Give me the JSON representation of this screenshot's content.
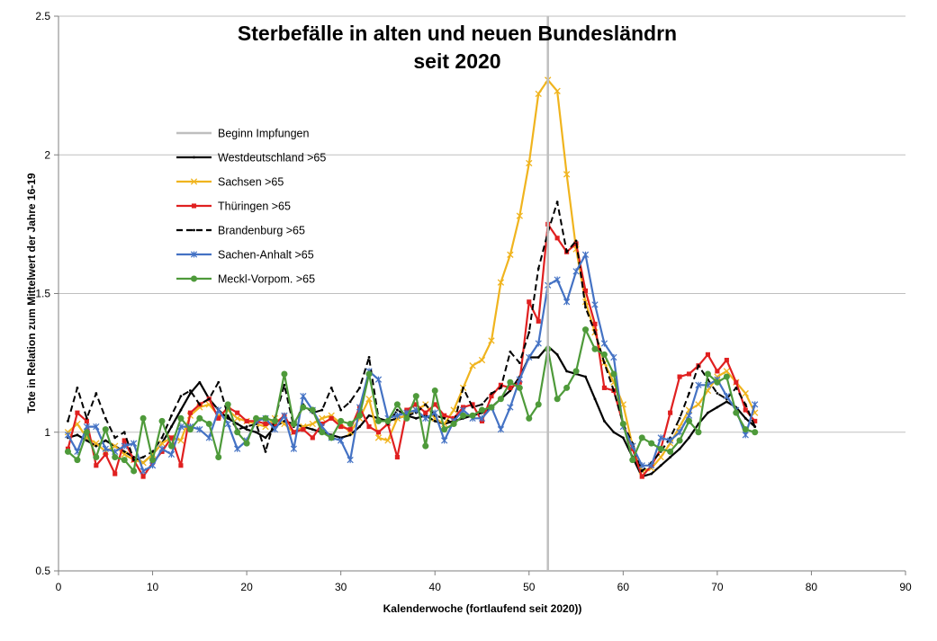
{
  "chart_data": {
    "type": "line",
    "title": [
      "Sterbefälle in alten und neuen Bundesländrn",
      "seit 2020"
    ],
    "xlabel": "Kalenderwoche (fortlaufend seit 2020))",
    "ylabel": "Tote in Relation zum Mittelwert der Jahre 16-19",
    "xlim": [
      0,
      90
    ],
    "ylim": [
      0.5,
      2.5
    ],
    "x_ticks": [
      0,
      10,
      20,
      30,
      40,
      50,
      60,
      70,
      80,
      90
    ],
    "y_ticks": [
      0.5,
      1,
      1.5,
      2,
      2.5
    ],
    "y_tick_labels": [
      "0.5",
      "1",
      "1.5",
      "2",
      "2.5"
    ],
    "grid": "horizontal",
    "legend_position": "upper-left",
    "vertical_marker": {
      "name": "Beginn Impfungen",
      "x": 52,
      "color": "#bfbfbf"
    },
    "series": [
      {
        "name": "Westdeutschland >65",
        "color": "#000000",
        "dash": "solid",
        "marker": "dot",
        "x": [
          1,
          2,
          3,
          4,
          5,
          6,
          7,
          8,
          9,
          10,
          11,
          12,
          13,
          14,
          15,
          16,
          17,
          18,
          19,
          20,
          21,
          22,
          23,
          24,
          25,
          26,
          27,
          28,
          29,
          30,
          31,
          32,
          33,
          34,
          35,
          36,
          37,
          38,
          39,
          40,
          41,
          42,
          43,
          44,
          45,
          46,
          47,
          48,
          49,
          50,
          51,
          52,
          53,
          54,
          55,
          56,
          57,
          58,
          59,
          60,
          61,
          62,
          63,
          64,
          65,
          66,
          67,
          68,
          69,
          70,
          71,
          72,
          73,
          74
        ],
        "y": [
          0.98,
          0.99,
          0.97,
          0.95,
          0.97,
          0.95,
          0.93,
          0.91,
          0.89,
          0.92,
          0.96,
          1.02,
          1.08,
          1.14,
          1.18,
          1.12,
          1.08,
          1.05,
          1.03,
          1.01,
          1.0,
          0.98,
          1.02,
          1.04,
          1.03,
          1.02,
          1.01,
          1.0,
          0.99,
          0.98,
          0.99,
          1.02,
          1.06,
          1.05,
          1.04,
          1.05,
          1.06,
          1.05,
          1.06,
          1.04,
          1.03,
          1.04,
          1.05,
          1.06,
          1.07,
          1.09,
          1.12,
          1.15,
          1.2,
          1.27,
          1.27,
          1.31,
          1.28,
          1.22,
          1.21,
          1.2,
          1.12,
          1.04,
          1.0,
          0.98,
          0.91,
          0.84,
          0.85,
          0.88,
          0.91,
          0.94,
          0.98,
          1.03,
          1.07,
          1.09,
          1.11,
          1.09,
          1.05,
          1.02
        ]
      },
      {
        "name": "Sachsen >65",
        "color": "#f0b41e",
        "dash": "solid",
        "marker": "x",
        "x": [
          1,
          2,
          3,
          4,
          5,
          6,
          7,
          8,
          9,
          10,
          11,
          12,
          13,
          14,
          15,
          16,
          17,
          18,
          19,
          20,
          21,
          22,
          23,
          24,
          25,
          26,
          27,
          28,
          29,
          30,
          31,
          32,
          33,
          34,
          35,
          36,
          37,
          38,
          39,
          40,
          41,
          42,
          43,
          44,
          45,
          46,
          47,
          48,
          49,
          50,
          51,
          52,
          53,
          54,
          55,
          56,
          57,
          58,
          59,
          60,
          61,
          62,
          63,
          64,
          65,
          66,
          67,
          68,
          69,
          70,
          71,
          72,
          73,
          74
        ],
        "y": [
          1.0,
          1.03,
          0.98,
          0.96,
          0.93,
          0.95,
          0.92,
          0.9,
          0.89,
          0.92,
          0.96,
          0.98,
          0.97,
          1.06,
          1.09,
          1.1,
          1.06,
          1.08,
          1.05,
          1.04,
          1.03,
          1.02,
          1.05,
          1.03,
          1.0,
          1.02,
          1.03,
          1.05,
          1.06,
          1.03,
          1.0,
          1.05,
          1.12,
          0.98,
          0.97,
          1.05,
          1.06,
          1.08,
          1.1,
          1.05,
          1.03,
          1.08,
          1.16,
          1.24,
          1.26,
          1.33,
          1.54,
          1.64,
          1.78,
          1.97,
          2.22,
          2.27,
          2.23,
          1.93,
          1.66,
          1.47,
          1.36,
          1.25,
          1.18,
          1.1,
          0.95,
          0.86,
          0.87,
          0.91,
          0.96,
          1.02,
          1.08,
          1.1,
          1.15,
          1.2,
          1.22,
          1.18,
          1.14,
          1.07
        ]
      },
      {
        "name": "Thüringen >65",
        "color": "#e02020",
        "dash": "solid",
        "marker": "square",
        "x": [
          1,
          2,
          3,
          4,
          5,
          6,
          7,
          8,
          9,
          10,
          11,
          12,
          13,
          14,
          15,
          16,
          17,
          18,
          19,
          20,
          21,
          22,
          23,
          24,
          25,
          26,
          27,
          28,
          29,
          30,
          31,
          32,
          33,
          34,
          35,
          36,
          37,
          38,
          39,
          40,
          41,
          42,
          43,
          44,
          45,
          46,
          47,
          48,
          49,
          50,
          51,
          52,
          53,
          54,
          55,
          56,
          57,
          58,
          59,
          60,
          61,
          62,
          63,
          64,
          65,
          66,
          67,
          68,
          69,
          70,
          71,
          72,
          73,
          74
        ],
        "y": [
          0.94,
          1.07,
          1.04,
          0.88,
          0.92,
          0.85,
          0.97,
          0.9,
          0.84,
          0.89,
          0.93,
          0.98,
          0.88,
          1.07,
          1.1,
          1.12,
          1.05,
          1.09,
          1.07,
          1.04,
          1.04,
          1.03,
          1.03,
          1.06,
          1.0,
          1.01,
          0.98,
          1.03,
          1.05,
          1.02,
          1.01,
          1.09,
          1.02,
          1.0,
          1.03,
          0.91,
          1.08,
          1.1,
          1.07,
          1.1,
          1.06,
          1.05,
          1.09,
          1.1,
          1.04,
          1.13,
          1.17,
          1.16,
          1.18,
          1.47,
          1.4,
          1.75,
          1.7,
          1.65,
          1.68,
          1.51,
          1.39,
          1.16,
          1.15,
          1.03,
          0.94,
          0.84,
          0.88,
          0.94,
          1.07,
          1.2,
          1.21,
          1.24,
          1.28,
          1.22,
          1.26,
          1.18,
          1.08,
          1.04
        ]
      },
      {
        "name": "Brandenburg >65",
        "color": "#000000",
        "dash": "dashed",
        "marker": "dot",
        "x": [
          1,
          2,
          3,
          4,
          5,
          6,
          7,
          8,
          9,
          10,
          11,
          12,
          13,
          14,
          15,
          16,
          17,
          18,
          19,
          20,
          21,
          22,
          23,
          24,
          25,
          26,
          27,
          28,
          29,
          30,
          31,
          32,
          33,
          34,
          35,
          36,
          37,
          38,
          39,
          40,
          41,
          42,
          43,
          44,
          45,
          46,
          47,
          48,
          49,
          50,
          51,
          52,
          53,
          54,
          55,
          56,
          57,
          58,
          59,
          60,
          61,
          62,
          63,
          64,
          65,
          66,
          67,
          68,
          69,
          70,
          71,
          72,
          73,
          74
        ],
        "y": [
          1.04,
          1.16,
          1.05,
          1.14,
          1.05,
          0.98,
          1.0,
          0.9,
          0.91,
          0.93,
          0.98,
          1.06,
          1.13,
          1.15,
          1.1,
          1.12,
          1.18,
          1.06,
          1.01,
          1.02,
          1.03,
          0.93,
          1.05,
          1.17,
          1.02,
          1.1,
          1.07,
          1.08,
          1.16,
          1.08,
          1.11,
          1.16,
          1.27,
          1.05,
          1.03,
          1.08,
          1.06,
          1.07,
          1.1,
          1.06,
          1.05,
          1.03,
          1.16,
          1.09,
          1.1,
          1.14,
          1.16,
          1.29,
          1.25,
          1.36,
          1.59,
          1.72,
          1.83,
          1.65,
          1.69,
          1.45,
          1.36,
          1.25,
          1.15,
          1.03,
          0.96,
          0.86,
          0.89,
          0.93,
          0.98,
          1.05,
          1.14,
          1.24,
          1.19,
          1.14,
          1.12,
          1.16,
          1.1,
          1.02
        ]
      },
      {
        "name": "Sachen-Anhalt >65",
        "color": "#4472c4",
        "dash": "solid",
        "marker": "star",
        "x": [
          1,
          2,
          3,
          4,
          5,
          6,
          7,
          8,
          9,
          10,
          11,
          12,
          13,
          14,
          15,
          16,
          17,
          18,
          19,
          20,
          21,
          22,
          23,
          24,
          25,
          26,
          27,
          28,
          29,
          30,
          31,
          32,
          33,
          34,
          35,
          36,
          37,
          38,
          39,
          40,
          41,
          42,
          43,
          44,
          45,
          46,
          47,
          48,
          49,
          50,
          51,
          52,
          53,
          54,
          55,
          56,
          57,
          58,
          59,
          60,
          61,
          62,
          63,
          64,
          65,
          66,
          67,
          68,
          69,
          70,
          71,
          72,
          73,
          74
        ],
        "y": [
          0.99,
          0.93,
          1.02,
          1.02,
          0.94,
          0.93,
          0.95,
          0.96,
          0.86,
          0.88,
          0.94,
          0.92,
          1.02,
          1.02,
          1.01,
          0.98,
          1.08,
          1.03,
          0.94,
          0.97,
          1.04,
          1.05,
          1.01,
          1.06,
          0.94,
          1.13,
          1.08,
          1.02,
          0.98,
          0.97,
          0.9,
          1.09,
          1.22,
          1.19,
          1.05,
          1.06,
          1.07,
          1.08,
          1.05,
          1.07,
          0.97,
          1.04,
          1.08,
          1.05,
          1.05,
          1.09,
          1.01,
          1.09,
          1.19,
          1.27,
          1.32,
          1.53,
          1.55,
          1.47,
          1.58,
          1.64,
          1.46,
          1.32,
          1.27,
          1.02,
          0.95,
          0.88,
          0.88,
          0.98,
          0.97,
          1.0,
          1.06,
          1.17,
          1.17,
          1.19,
          1.13,
          1.08,
          0.99,
          1.1
        ]
      },
      {
        "name": "Meckl-Vorpom. >65",
        "color": "#4e9a3a",
        "dash": "solid",
        "marker": "circle",
        "x": [
          1,
          2,
          3,
          4,
          5,
          6,
          7,
          8,
          9,
          10,
          11,
          12,
          13,
          14,
          15,
          16,
          17,
          18,
          19,
          20,
          21,
          22,
          23,
          24,
          25,
          26,
          27,
          28,
          29,
          30,
          31,
          32,
          33,
          34,
          35,
          36,
          37,
          38,
          39,
          40,
          41,
          42,
          43,
          44,
          45,
          46,
          47,
          48,
          49,
          50,
          51,
          52,
          53,
          54,
          55,
          56,
          57,
          58,
          59,
          60,
          61,
          62,
          63,
          64,
          65,
          66,
          67,
          68,
          69,
          70,
          71,
          72,
          73,
          74
        ],
        "y": [
          0.93,
          0.9,
          1.0,
          0.91,
          1.01,
          0.91,
          0.9,
          0.86,
          1.05,
          0.9,
          1.04,
          0.95,
          1.05,
          1.01,
          1.05,
          1.03,
          0.91,
          1.1,
          1.0,
          0.96,
          1.05,
          1.05,
          1.04,
          1.21,
          1.03,
          1.09,
          1.08,
          1.0,
          0.98,
          1.04,
          1.03,
          1.06,
          1.21,
          1.04,
          1.04,
          1.1,
          1.05,
          1.13,
          0.95,
          1.15,
          1.01,
          1.03,
          1.06,
          1.06,
          1.08,
          1.09,
          1.12,
          1.18,
          1.16,
          1.05,
          1.1,
          1.3,
          1.12,
          1.16,
          1.22,
          1.37,
          1.3,
          1.28,
          1.21,
          1.03,
          0.9,
          0.98,
          0.96,
          0.94,
          0.93,
          0.97,
          1.04,
          1.0,
          1.21,
          1.18,
          1.2,
          1.07,
          1.01,
          1.0
        ]
      }
    ]
  }
}
